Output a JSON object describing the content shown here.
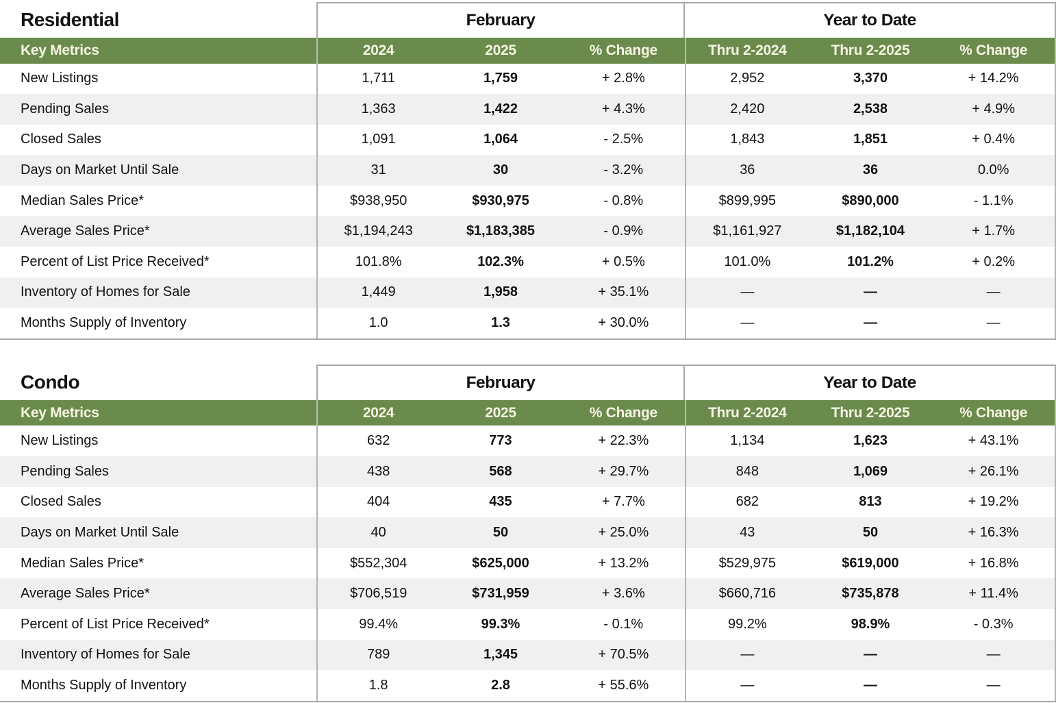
{
  "report": {
    "colors": {
      "header_green": "#6a8b4c",
      "header_text_cream": "#f7f4e3",
      "row_stripe_gray": "#f0f0f0",
      "border_gray": "#a9a9a9",
      "body_text": "#121212"
    },
    "tables": [
      {
        "title": "Residential",
        "month_section_title": "February",
        "ytd_section_title": "Year to Date",
        "key_metrics_label": "Key Metrics",
        "columns": [
          "2024",
          "2025",
          "% Change",
          "Thru 2-2024",
          "Thru 2-2025",
          "% Change"
        ],
        "rows": [
          {
            "label": "New Listings",
            "values": [
              "1,711",
              "1,759",
              "+ 2.8%",
              "2,952",
              "3,370",
              "+ 14.2%"
            ]
          },
          {
            "label": "Pending Sales",
            "values": [
              "1,363",
              "1,422",
              "+ 4.3%",
              "2,420",
              "2,538",
              "+ 4.9%"
            ]
          },
          {
            "label": "Closed Sales",
            "values": [
              "1,091",
              "1,064",
              "- 2.5%",
              "1,843",
              "1,851",
              "+ 0.4%"
            ]
          },
          {
            "label": "Days on Market Until Sale",
            "values": [
              "31",
              "30",
              "- 3.2%",
              "36",
              "36",
              "0.0%"
            ]
          },
          {
            "label": "Median Sales Price*",
            "values": [
              "$938,950",
              "$930,975",
              "- 0.8%",
              "$899,995",
              "$890,000",
              "- 1.1%"
            ]
          },
          {
            "label": "Average Sales Price*",
            "values": [
              "$1,194,243",
              "$1,183,385",
              "- 0.9%",
              "$1,161,927",
              "$1,182,104",
              "+ 1.7%"
            ]
          },
          {
            "label": "Percent of List Price Received*",
            "values": [
              "101.8%",
              "102.3%",
              "+ 0.5%",
              "101.0%",
              "101.2%",
              "+ 0.2%"
            ]
          },
          {
            "label": "Inventory of Homes for Sale",
            "values": [
              "1,449",
              "1,958",
              "+ 35.1%",
              "—",
              "—",
              "—"
            ]
          },
          {
            "label": "Months Supply of Inventory",
            "values": [
              "1.0",
              "1.3",
              "+ 30.0%",
              "—",
              "—",
              "—"
            ]
          }
        ]
      },
      {
        "title": "Condo",
        "month_section_title": "February",
        "ytd_section_title": "Year to Date",
        "key_metrics_label": "Key Metrics",
        "columns": [
          "2024",
          "2025",
          "% Change",
          "Thru 2-2024",
          "Thru 2-2025",
          "% Change"
        ],
        "rows": [
          {
            "label": "New Listings",
            "values": [
              "632",
              "773",
              "+ 22.3%",
              "1,134",
              "1,623",
              "+ 43.1%"
            ]
          },
          {
            "label": "Pending Sales",
            "values": [
              "438",
              "568",
              "+ 29.7%",
              "848",
              "1,069",
              "+ 26.1%"
            ]
          },
          {
            "label": "Closed Sales",
            "values": [
              "404",
              "435",
              "+ 7.7%",
              "682",
              "813",
              "+ 19.2%"
            ]
          },
          {
            "label": "Days on Market Until Sale",
            "values": [
              "40",
              "50",
              "+ 25.0%",
              "43",
              "50",
              "+ 16.3%"
            ]
          },
          {
            "label": "Median Sales Price*",
            "values": [
              "$552,304",
              "$625,000",
              "+ 13.2%",
              "$529,975",
              "$619,000",
              "+ 16.8%"
            ]
          },
          {
            "label": "Average Sales Price*",
            "values": [
              "$706,519",
              "$731,959",
              "+ 3.6%",
              "$660,716",
              "$735,878",
              "+ 11.4%"
            ]
          },
          {
            "label": "Percent of List Price Received*",
            "values": [
              "99.4%",
              "99.3%",
              "- 0.1%",
              "99.2%",
              "98.9%",
              "- 0.3%"
            ]
          },
          {
            "label": "Inventory of Homes for Sale",
            "values": [
              "789",
              "1,345",
              "+ 70.5%",
              "—",
              "—",
              "—"
            ]
          },
          {
            "label": "Months Supply of Inventory",
            "values": [
              "1.8",
              "2.8",
              "+ 55.6%",
              "—",
              "—",
              "—"
            ]
          }
        ]
      }
    ]
  }
}
